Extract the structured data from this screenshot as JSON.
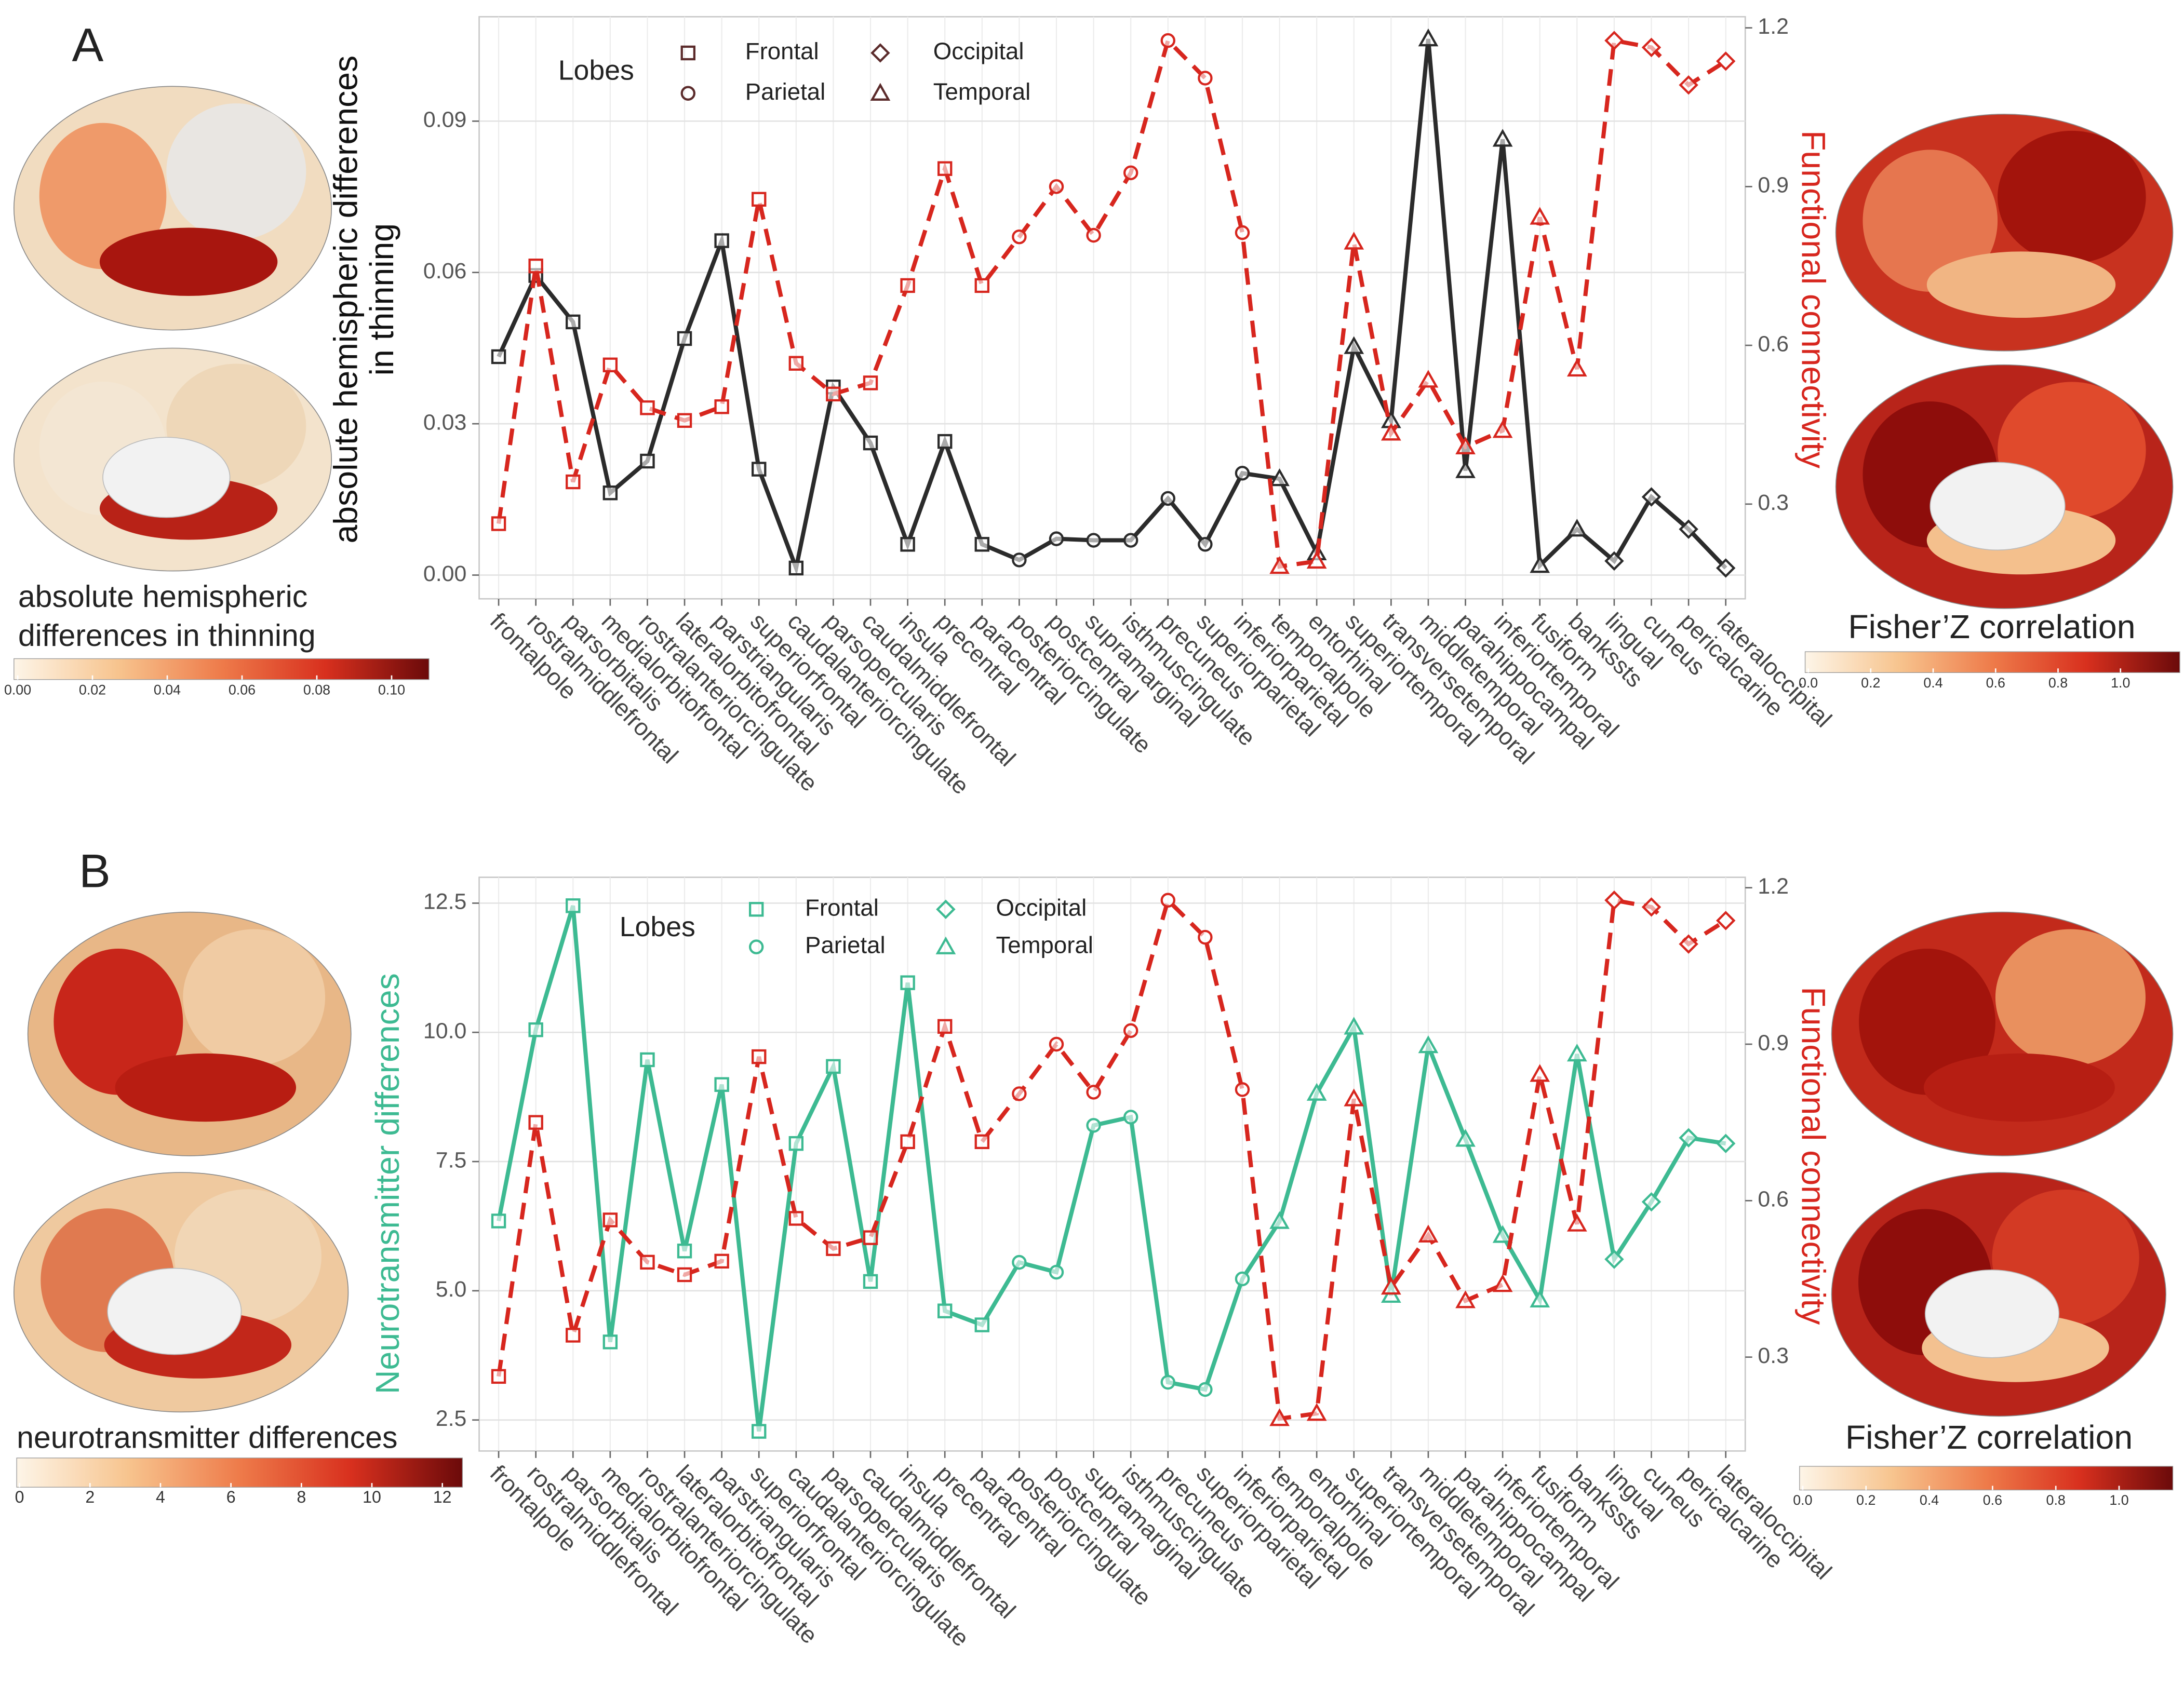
{
  "chart_data": [
    {
      "type": "line",
      "panel": "A",
      "categories": [
        "frontalpole",
        "rostralmiddlefrontal",
        "parsorbitalis",
        "medialorbitofrontal",
        "rostralanteriorcingulate",
        "lateralorbitofrontal",
        "parstriangularis",
        "superiorfrontal",
        "caudalanteriorcingulate",
        "parsopercularis",
        "caudalmiddlefrontal",
        "insula",
        "precentral",
        "paracentral",
        "posteriorcingulate",
        "postcentral",
        "supramarginal",
        "isthmuscingulate",
        "precuneus",
        "superiorparietal",
        "inferiorparietal",
        "temporalpole",
        "entorhinal",
        "superiortemporal",
        "transversetemporal",
        "middletemporal",
        "parahippocampal",
        "inferiortemporal",
        "fusiform",
        "bankssts",
        "lingual",
        "cuneus",
        "pericalcarine",
        "lateraloccipital"
      ],
      "category_lobes": [
        0,
        0,
        0,
        0,
        0,
        0,
        0,
        0,
        0,
        0,
        0,
        0,
        0,
        0,
        1,
        1,
        1,
        1,
        1,
        1,
        1,
        3,
        3,
        3,
        3,
        3,
        3,
        3,
        3,
        3,
        2,
        2,
        2,
        2
      ],
      "legend_title": "Lobes",
      "legend": [
        "Frontal",
        "Parietal",
        "Occipital",
        "Temporal"
      ],
      "legend_markers": [
        "square",
        "circle",
        "diamond",
        "triangle"
      ],
      "legend_color": "#5b2b2b",
      "y_label": [
        "absolute hemispheric differences",
        "in thinning"
      ],
      "y_label_color": "#111111",
      "y2_label": "Functional connectivity",
      "y2_label_color": "#d7261e",
      "ylim": [
        -0.0047,
        0.1107
      ],
      "yticks": [
        {
          "value": 0,
          "label": "0.00"
        },
        {
          "value": 0.03,
          "label": "0.03"
        },
        {
          "value": 0.06,
          "label": "0.06"
        },
        {
          "value": 0.09,
          "label": "0.09"
        }
      ],
      "y2lim": [
        0.121,
        1.221
      ],
      "y2ticks": [
        0.3,
        0.6,
        0.9,
        1.2
      ],
      "grid": true,
      "series": [
        {
          "color": "#2b2b2b",
          "dash": false,
          "values": [
            0.0433,
            0.0594,
            0.0502,
            0.0163,
            0.0226,
            0.0469,
            0.0663,
            0.021,
            0.0014,
            0.0373,
            0.0262,
            0.0061,
            0.0265,
            0.0061,
            0.003,
            0.0072,
            0.0069,
            0.0069,
            0.0152,
            0.0061,
            0.0202,
            0.0191,
            0.0044,
            0.0453,
            0.0306,
            0.1063,
            0.0207,
            0.0864,
            0.0019,
            0.0091,
            0.0028,
            0.0155,
            0.0091,
            0.0014
          ]
        },
        {
          "color": "#d7261e",
          "dash": true,
          "axis": "y2",
          "values": [
            0.263,
            0.75,
            0.342,
            0.563,
            0.482,
            0.458,
            0.484,
            0.876,
            0.566,
            0.508,
            0.529,
            0.713,
            0.934,
            0.713,
            0.805,
            0.9,
            0.808,
            0.926,
            1.176,
            1.105,
            0.813,
            0.182,
            0.192,
            0.795,
            0.434,
            0.534,
            0.408,
            0.439,
            0.842,
            0.555,
            1.176,
            1.163,
            1.092,
            1.137
          ]
        }
      ],
      "colorbars": [
        {
          "label": [
            "absolute hemispheric",
            "differences in thinning"
          ],
          "lim": [
            -0.001,
            0.11
          ],
          "ticks": [
            {
              "value": 0,
              "label": "0.00"
            },
            {
              "value": 0.02,
              "label": "0.02"
            },
            {
              "value": 0.04,
              "label": "0.04"
            },
            {
              "value": 0.06,
              "label": "0.06"
            },
            {
              "value": 0.08,
              "label": "0.08"
            },
            {
              "value": 0.1,
              "label": "0.10"
            }
          ],
          "colors": [
            "#fdf5e8",
            "#f7c48e",
            "#ee7b4a",
            "#d8301e",
            "#6b0a0a"
          ]
        },
        {
          "label": [
            "Fisher’Z correlation"
          ],
          "lim": [
            -0.01,
            1.19
          ],
          "ticks": [
            {
              "value": 0,
              "label": "0.0"
            },
            0.2,
            0.4,
            0.6,
            0.8,
            {
              "value": 1,
              "label": "1.0"
            }
          ],
          "colors": [
            "#fdf5e8",
            "#f7c48e",
            "#ee7b4a",
            "#d8301e",
            "#6b0a0a"
          ]
        }
      ]
    },
    {
      "type": "line",
      "panel": "B",
      "categories": [
        "frontalpole",
        "rostralmiddlefrontal",
        "parsorbitalis",
        "medialorbitofrontal",
        "rostralanteriorcingulate",
        "lateralorbitofrontal",
        "parstriangularis",
        "superiorfrontal",
        "caudalanteriorcingulate",
        "parsopercularis",
        "caudalmiddlefrontal",
        "insula",
        "precentral",
        "paracentral",
        "posteriorcingulate",
        "postcentral",
        "supramarginal",
        "isthmuscingulate",
        "precuneus",
        "superiorparietal",
        "inferiorparietal",
        "temporalpole",
        "entorhinal",
        "superiortemporal",
        "transversetemporal",
        "middletemporal",
        "parahippocampal",
        "inferiortemporal",
        "fusiform",
        "bankssts",
        "lingual",
        "cuneus",
        "pericalcarine",
        "lateraloccipital"
      ],
      "category_lobes": [
        0,
        0,
        0,
        0,
        0,
        0,
        0,
        0,
        0,
        0,
        0,
        0,
        0,
        0,
        1,
        1,
        1,
        1,
        1,
        1,
        1,
        3,
        3,
        3,
        3,
        3,
        3,
        3,
        3,
        3,
        2,
        2,
        2,
        2
      ],
      "legend_title": "Lobes",
      "legend": [
        "Frontal",
        "Parietal",
        "Occipital",
        "Temporal"
      ],
      "legend_markers": [
        "square",
        "circle",
        "diamond",
        "triangle"
      ],
      "legend_color": "#3dba92",
      "y_label": [
        "Neurotransmitter differences"
      ],
      "y_label_color": "#3dba92",
      "y2_label": "Functional connectivity",
      "y2_label_color": "#d7261e",
      "ylim": [
        1.9,
        13.0
      ],
      "yticks": [
        2.5,
        {
          "value": 5,
          "label": "5.0"
        },
        7.5,
        {
          "value": 10,
          "label": "10.0"
        },
        12.5
      ],
      "y2lim": [
        0.12,
        1.22
      ],
      "y2ticks": [
        0.3,
        0.6,
        0.9,
        1.2
      ],
      "grid": true,
      "series": [
        {
          "color": "#3dba92",
          "dash": false,
          "values": [
            6.35,
            10.05,
            12.45,
            4.01,
            9.47,
            5.77,
            8.99,
            2.28,
            7.85,
            9.34,
            5.18,
            10.96,
            4.61,
            4.34,
            5.55,
            5.36,
            8.2,
            8.36,
            3.23,
            3.09,
            5.23,
            6.34,
            8.82,
            10.1,
            4.91,
            9.74,
            7.93,
            6.07,
            4.82,
            9.58,
            5.61,
            6.72,
            7.96,
            7.85
          ]
        },
        {
          "color": "#d7261e",
          "dash": true,
          "axis": "y2",
          "values": [
            0.263,
            0.75,
            0.342,
            0.563,
            0.482,
            0.458,
            0.484,
            0.876,
            0.566,
            0.508,
            0.529,
            0.713,
            0.934,
            0.713,
            0.805,
            0.9,
            0.808,
            0.926,
            1.176,
            1.105,
            0.813,
            0.182,
            0.192,
            0.795,
            0.434,
            0.534,
            0.408,
            0.439,
            0.842,
            0.555,
            1.176,
            1.163,
            1.092,
            1.137
          ]
        }
      ],
      "colorbars": [
        {
          "label": [
            "neurotransmitter differences"
          ],
          "lim": [
            -0.08,
            12.57
          ],
          "ticks": [
            0,
            2,
            4,
            6,
            8,
            10,
            12
          ],
          "colors": [
            "#fdf5e8",
            "#f7c48e",
            "#ee7b4a",
            "#d8301e",
            "#6b0a0a"
          ]
        },
        {
          "label": [
            "Fisher’Z correlation"
          ],
          "lim": [
            -0.01,
            1.17
          ],
          "ticks": [
            {
              "value": 0,
              "label": "0.0"
            },
            0.2,
            0.4,
            0.6,
            0.8,
            {
              "value": 1,
              "label": "1.0"
            }
          ],
          "colors": [
            "#fdf5e8",
            "#f7c48e",
            "#ee7b4a",
            "#d8301e",
            "#6b0a0a"
          ]
        }
      ]
    }
  ]
}
